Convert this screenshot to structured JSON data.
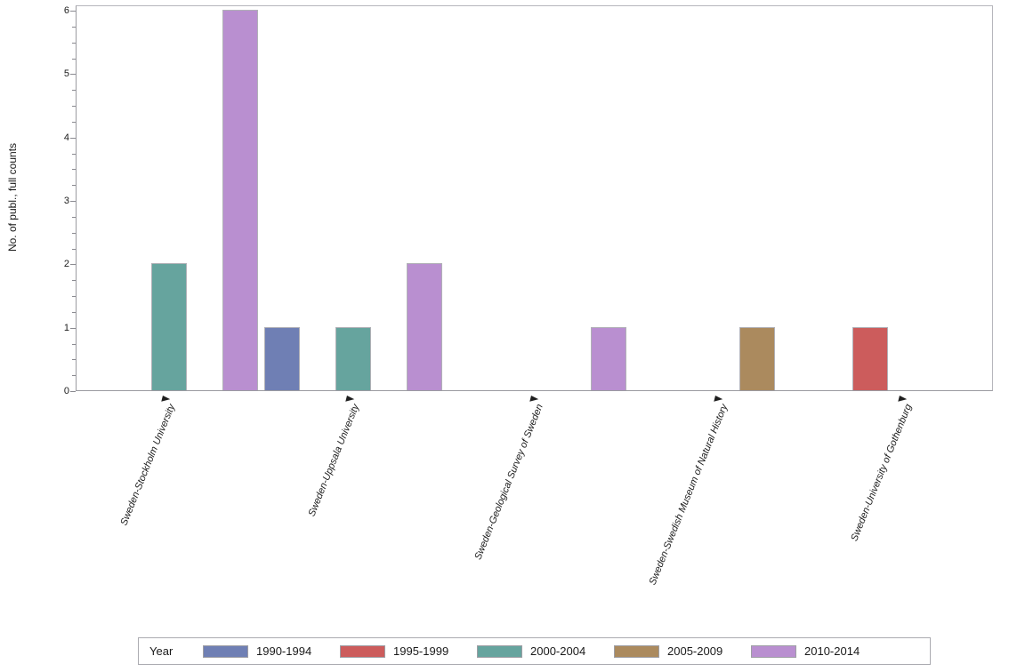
{
  "chart_data": {
    "type": "bar",
    "title": "",
    "xlabel": "",
    "ylabel": "No. of publ., full counts",
    "ylim": [
      0,
      6
    ],
    "y_ticks": [
      0,
      1,
      2,
      3,
      4,
      5,
      6
    ],
    "y_minor_step": 0.25,
    "grid": false,
    "legend_title": "Year",
    "legend_position": "bottom",
    "categories": [
      "Sweden-Stockholm University",
      "Sweden-Uppsala University",
      "Sweden-Geological Survey of Sweden",
      "Sweden-Swedish Museum of Natural History",
      "Sweden-University of Gothenburg"
    ],
    "series": [
      {
        "name": "1990-1994",
        "color": "#6F7FB4",
        "values": [
          0,
          1,
          0,
          0,
          0
        ]
      },
      {
        "name": "1995-1999",
        "color": "#CC5C5C",
        "values": [
          0,
          0,
          0,
          0,
          1
        ]
      },
      {
        "name": "2000-2004",
        "color": "#66A49E",
        "values": [
          2,
          1,
          0,
          0,
          0
        ]
      },
      {
        "name": "2005-2009",
        "color": "#AB8A5E",
        "values": [
          0,
          0,
          0,
          1,
          0
        ]
      },
      {
        "name": "2010-2014",
        "color": "#B98FD0",
        "values": [
          6,
          2,
          1,
          0,
          0
        ]
      }
    ]
  }
}
